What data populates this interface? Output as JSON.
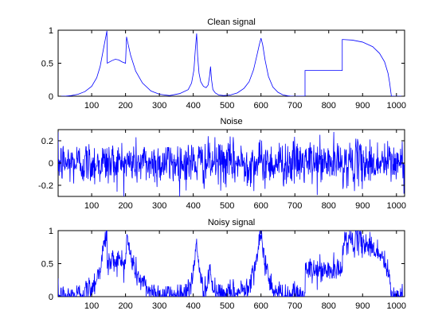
{
  "colors": {
    "line": "#0000ff",
    "axes": "#000000",
    "background": "#ffffff"
  },
  "chart_data": [
    {
      "type": "line",
      "title": "Clean signal",
      "xlabel": "",
      "ylabel": "",
      "xlim": [
        1,
        1024
      ],
      "ylim": [
        0,
        1
      ],
      "grid": false,
      "xticks": [
        100,
        200,
        300,
        400,
        500,
        600,
        700,
        800,
        900,
        1000
      ],
      "yticks": [
        0,
        0.5,
        1
      ],
      "ytick_labels": [
        "0",
        "0.5",
        "1"
      ],
      "series": [
        {
          "x": [
            1,
            20,
            40,
            60,
            80,
            100,
            115,
            125,
            135,
            145,
            146,
            160,
            170,
            180,
            190,
            200,
            203,
            205,
            215,
            230,
            250,
            275,
            300,
            330,
            360,
            385,
            395,
            402,
            406,
            410,
            413,
            417,
            422,
            430,
            438,
            444,
            448,
            451,
            454,
            458,
            465,
            475,
            490,
            510,
            530,
            550,
            565,
            578,
            588,
            595,
            600,
            605,
            612,
            622,
            635,
            650,
            665,
            680,
            690,
            730,
            730,
            840,
            840,
            870,
            900,
            930,
            950,
            965,
            975,
            980,
            985,
            1024
          ],
          "y": [
            0,
            0,
            0.01,
            0.03,
            0.07,
            0.15,
            0.28,
            0.45,
            0.72,
            0.99,
            0.5,
            0.54,
            0.56,
            0.55,
            0.52,
            0.5,
            0.9,
            0.85,
            0.62,
            0.38,
            0.2,
            0.08,
            0.03,
            0.01,
            0.04,
            0.1,
            0.2,
            0.4,
            0.7,
            0.95,
            0.6,
            0.35,
            0.22,
            0.15,
            0.13,
            0.17,
            0.3,
            0.45,
            0.25,
            0.1,
            0.05,
            0.02,
            0.01,
            0.02,
            0.05,
            0.12,
            0.22,
            0.4,
            0.62,
            0.78,
            0.88,
            0.78,
            0.55,
            0.3,
            0.14,
            0.06,
            0.02,
            0.005,
            0,
            0,
            0.39,
            0.39,
            0.86,
            0.85,
            0.82,
            0.75,
            0.65,
            0.52,
            0.35,
            0.2,
            0,
            0
          ]
        }
      ]
    },
    {
      "type": "line",
      "title": "Noise",
      "xlabel": "",
      "ylabel": "",
      "xlim": [
        1,
        1024
      ],
      "ylim": [
        -0.3,
        0.3
      ],
      "grid": false,
      "xticks": [
        100,
        200,
        300,
        400,
        500,
        600,
        700,
        800,
        900,
        1000
      ],
      "yticks": [
        -0.2,
        0,
        0.2
      ],
      "ytick_labels": [
        "-0.2",
        "0",
        "0.2"
      ],
      "series": [
        {
          "generated": "white-noise",
          "n": 1024,
          "std": 0.1,
          "clip": [
            -0.3,
            0.3
          ]
        }
      ]
    },
    {
      "type": "line",
      "title": "Noisy signal",
      "xlabel": "",
      "ylabel": "",
      "xlim": [
        1,
        1024
      ],
      "ylim": [
        0,
        1
      ],
      "grid": false,
      "xticks": [
        100,
        200,
        300,
        400,
        500,
        600,
        700,
        800,
        900,
        1000
      ],
      "yticks": [
        0,
        0.5,
        1
      ],
      "ytick_labels": [
        "0",
        "0.5",
        "1"
      ],
      "series": [
        {
          "generated": "clean-plus-noise",
          "clip": [
            0,
            1
          ]
        }
      ]
    }
  ]
}
